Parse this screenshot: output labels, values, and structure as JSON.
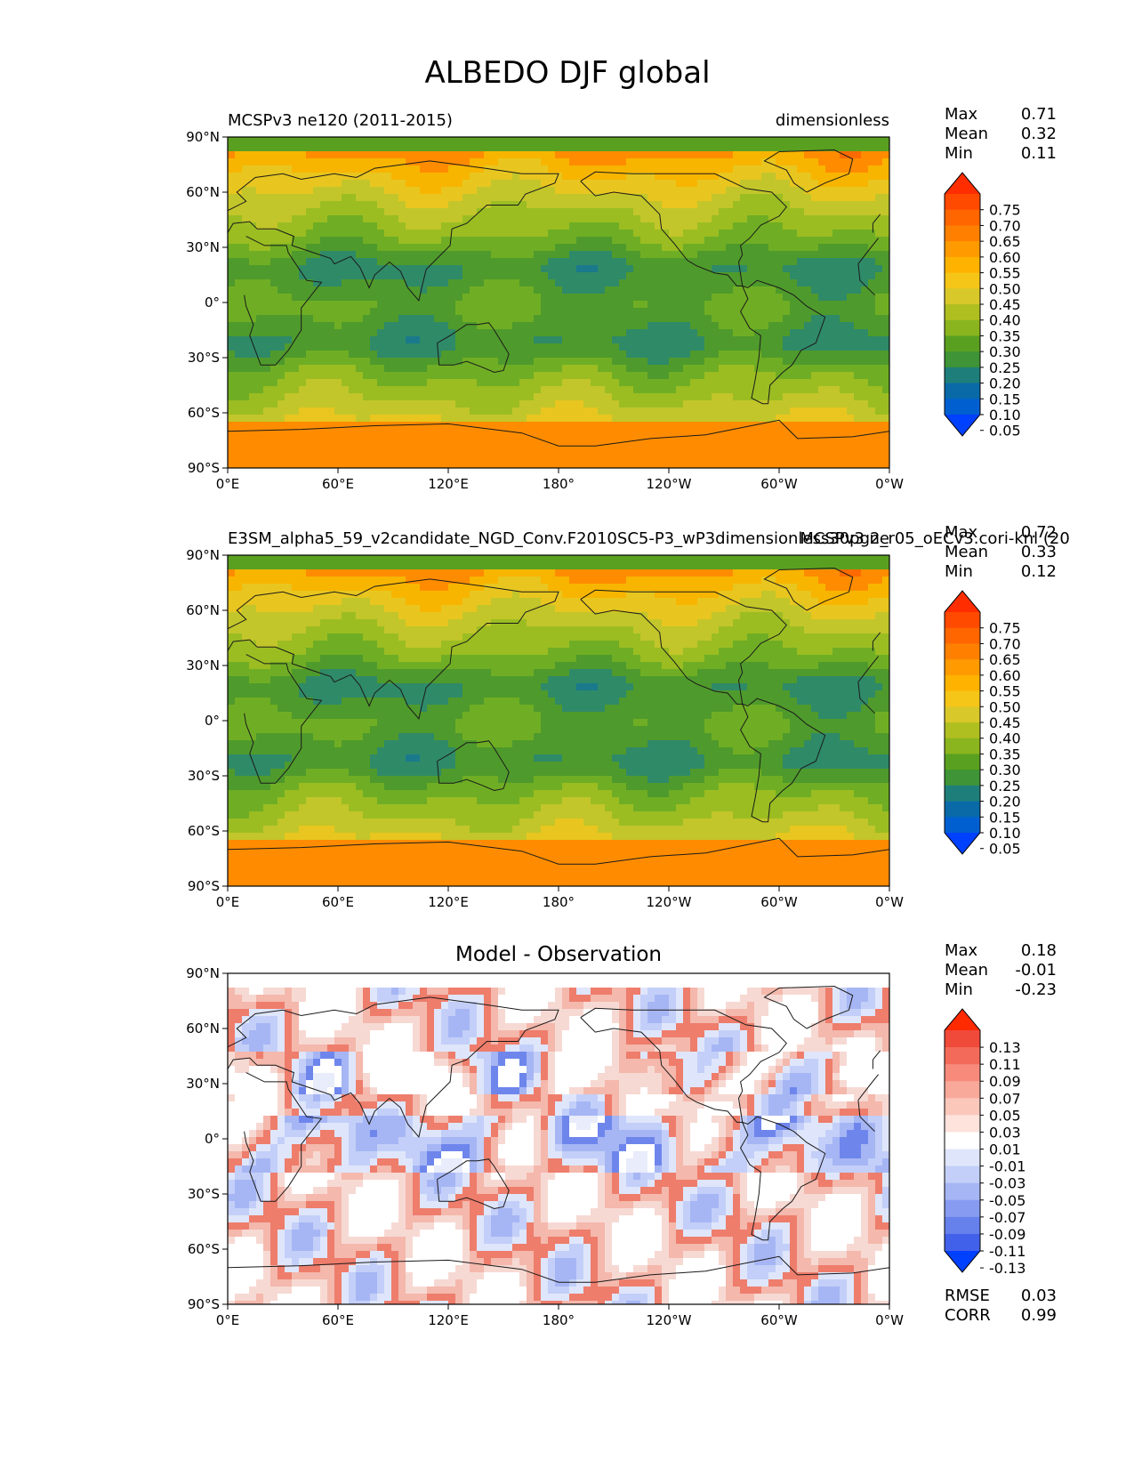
{
  "figure_title": "ALBEDO DJF global",
  "map_ticks": {
    "lat_labels": [
      "90°N",
      "60°N",
      "30°N",
      "0°",
      "30°S",
      "60°S",
      "90°S"
    ],
    "lon_labels": [
      "0°E",
      "60°E",
      "120°E",
      "180°",
      "120°W",
      "60°W",
      "0°W"
    ]
  },
  "panels": [
    {
      "id": "test",
      "left_title": "MCSPv3 ne120 (2011-2015)",
      "right_title": "dimensionless",
      "stats": [
        {
          "label": "Max",
          "value": "0.71"
        },
        {
          "label": "Mean",
          "value": "0.32"
        },
        {
          "label": "Min",
          "value": "0.11"
        }
      ],
      "colorbar": {
        "labels": [
          "0.75",
          "0.70",
          "0.65",
          "0.60",
          "0.55",
          "0.50",
          "0.45",
          "0.40",
          "0.35",
          "0.30",
          "0.25",
          "0.20",
          "0.15",
          "0.10",
          "0.05"
        ],
        "colors": [
          "#ff2d00",
          "#ff4a00",
          "#ff6600",
          "#ff8000",
          "#ff9a00",
          "#ffb300",
          "#f5c518",
          "#d9c82a",
          "#b0bf20",
          "#8ab51e",
          "#5aa020",
          "#3e9436",
          "#1e7f7a",
          "#0a6aa8",
          "#005fd0",
          "#0040ff"
        ]
      },
      "map_palette": [
        "#ff6a00",
        "#ff8c00",
        "#f7b500",
        "#e8c61f",
        "#c2c62a",
        "#9bbd22",
        "#6fae24",
        "#4f9a2c",
        "#2f8a68",
        "#1a7a8c",
        "#2a8fd8"
      ]
    },
    {
      "id": "reference",
      "left_title": "E3SM_alpha5_59_v2candidate_NGD_Conv.F2010SC5-P3_wP3dimensionless30pg2_r05_oECv3.cori-knl (20",
      "right_title": "MCSPv3 ne",
      "stats": [
        {
          "label": "Max",
          "value": "0.72"
        },
        {
          "label": "Mean",
          "value": "0.33"
        },
        {
          "label": "Min",
          "value": "0.12"
        }
      ],
      "colorbar": {
        "labels": [
          "0.75",
          "0.70",
          "0.65",
          "0.60",
          "0.55",
          "0.50",
          "0.45",
          "0.40",
          "0.35",
          "0.30",
          "0.25",
          "0.20",
          "0.15",
          "0.10",
          "0.05"
        ],
        "colors": [
          "#ff2d00",
          "#ff4a00",
          "#ff6600",
          "#ff8000",
          "#ff9a00",
          "#ffb300",
          "#f5c518",
          "#d9c82a",
          "#b0bf20",
          "#8ab51e",
          "#5aa020",
          "#3e9436",
          "#1e7f7a",
          "#0a6aa8",
          "#005fd0",
          "#0040ff"
        ]
      },
      "map_palette": [
        "#ff6a00",
        "#ff8c00",
        "#f7b500",
        "#e8c61f",
        "#c2c62a",
        "#9bbd22",
        "#6fae24",
        "#4f9a2c",
        "#2f8a68",
        "#1a7a8c",
        "#2a8fd8"
      ]
    },
    {
      "id": "difference",
      "center_title": "Model - Observation",
      "stats": [
        {
          "label": "Max",
          "value": "0.18"
        },
        {
          "label": "Mean",
          "value": "-0.01"
        },
        {
          "label": "Min",
          "value": "-0.23"
        }
      ],
      "extra_stats": [
        {
          "label": "RMSE",
          "value": "0.03"
        },
        {
          "label": "CORR",
          "value": "0.99"
        }
      ],
      "colorbar": {
        "labels": [
          "0.13",
          "0.11",
          "0.09",
          "0.07",
          "0.05",
          "0.03",
          "0.01",
          "-0.01",
          "-0.03",
          "-0.05",
          "-0.07",
          "-0.09",
          "-0.11",
          "-0.13"
        ],
        "colors": [
          "#ff2a00",
          "#f04a3a",
          "#f46a5a",
          "#f78a7a",
          "#f9a99a",
          "#fbc7bb",
          "#fde3dc",
          "#ffffff",
          "#dfe6fb",
          "#c3cff8",
          "#a6b6f4",
          "#879bf0",
          "#6680ec",
          "#4261ea",
          "#0040ff"
        ]
      },
      "map_palette": [
        "#ffffff",
        "#ffffff",
        "#f7d9d3",
        "#f4b8ac",
        "#ee7d6c",
        "#dfe6fb",
        "#c3cff8",
        "#a6b6f4",
        "#6e86ec",
        "#ffffff",
        "#e8ecfb"
      ]
    }
  ],
  "chart_data": [
    {
      "type": "heatmap",
      "title": "MCSPv3 ne120 (2011-2015)",
      "units": "dimensionless",
      "x_range": [
        0,
        360
      ],
      "y_range": [
        -90,
        90
      ],
      "x_ticks": [
        "0°E",
        "60°E",
        "120°E",
        "180°",
        "120°W",
        "60°W",
        "0°W"
      ],
      "y_ticks": [
        "90°N",
        "60°N",
        "30°N",
        "0°",
        "30°S",
        "60°S",
        "90°S"
      ],
      "levels": [
        0.05,
        0.1,
        0.15,
        0.2,
        0.25,
        0.3,
        0.35,
        0.4,
        0.45,
        0.5,
        0.55,
        0.6,
        0.65,
        0.7,
        0.75
      ],
      "max": 0.71,
      "mean": 0.32,
      "min": 0.11
    },
    {
      "type": "heatmap",
      "title": "E3SM_alpha5_59_v2candidate_NGD_Conv.F2010SC5-P3_wP3dimensionless30pg2_r05_oECv3.cori-knl (20",
      "units": "dimensionless",
      "x_range": [
        0,
        360
      ],
      "y_range": [
        -90,
        90
      ],
      "levels": [
        0.05,
        0.1,
        0.15,
        0.2,
        0.25,
        0.3,
        0.35,
        0.4,
        0.45,
        0.5,
        0.55,
        0.6,
        0.65,
        0.7,
        0.75
      ],
      "max": 0.72,
      "mean": 0.33,
      "min": 0.12
    },
    {
      "type": "heatmap",
      "title": "Model - Observation",
      "x_range": [
        0,
        360
      ],
      "y_range": [
        -90,
        90
      ],
      "levels": [
        -0.13,
        -0.11,
        -0.09,
        -0.07,
        -0.05,
        -0.03,
        -0.01,
        0.01,
        0.03,
        0.05,
        0.07,
        0.09,
        0.11,
        0.13
      ],
      "max": 0.18,
      "mean": -0.01,
      "min": -0.23,
      "rmse": 0.03,
      "corr": 0.99
    }
  ]
}
